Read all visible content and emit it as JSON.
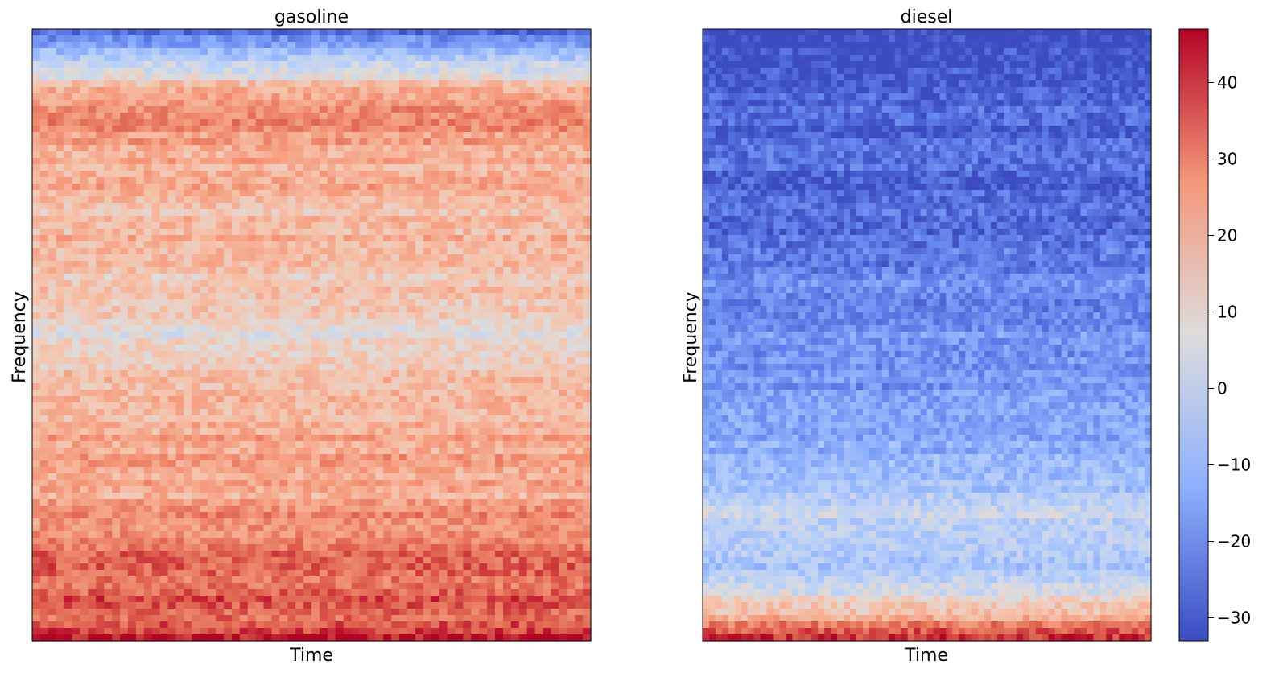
{
  "chart_data": [
    {
      "type": "heatmap",
      "title": "gasoline",
      "xlabel": "Time",
      "ylabel": "Frequency",
      "x_ticks_shown": false,
      "y_ticks_shown": false,
      "colormap": "coolwarm",
      "vrange": [
        -33,
        47
      ],
      "profile_note_rows": "approximate mean level per frequency band, top to bottom",
      "row_levels": [
        -28,
        -8,
        6,
        25,
        30,
        27,
        22,
        21,
        22,
        17,
        20,
        18,
        15,
        16,
        13,
        8,
        12,
        17,
        19,
        18,
        24,
        24,
        23,
        22,
        29,
        31,
        36,
        34,
        37,
        35,
        44
      ],
      "row_variation": 9
    },
    {
      "type": "heatmap",
      "title": "diesel",
      "xlabel": "Time",
      "ylabel": "Frequency",
      "x_ticks_shown": false,
      "y_ticks_shown": false,
      "colormap": "coolwarm",
      "vrange": [
        -33,
        47
      ],
      "row_levels": [
        -33,
        -33,
        -31,
        -29,
        -28,
        -28,
        -27,
        -28,
        -29,
        -27,
        -25,
        -24,
        -22,
        -20,
        -23,
        -19,
        -22,
        -17,
        -18,
        -14,
        -13,
        -12,
        -9,
        -5,
        2,
        -4,
        -6,
        -3,
        8,
        22,
        42
      ],
      "row_variation": 9
    }
  ],
  "colorbar": {
    "ticks": [
      "40",
      "30",
      "20",
      "10",
      "0",
      "−10",
      "−20",
      "−30"
    ],
    "tick_values": [
      40,
      30,
      20,
      10,
      0,
      -10,
      -20,
      -30
    ],
    "range": [
      -33,
      47
    ]
  }
}
